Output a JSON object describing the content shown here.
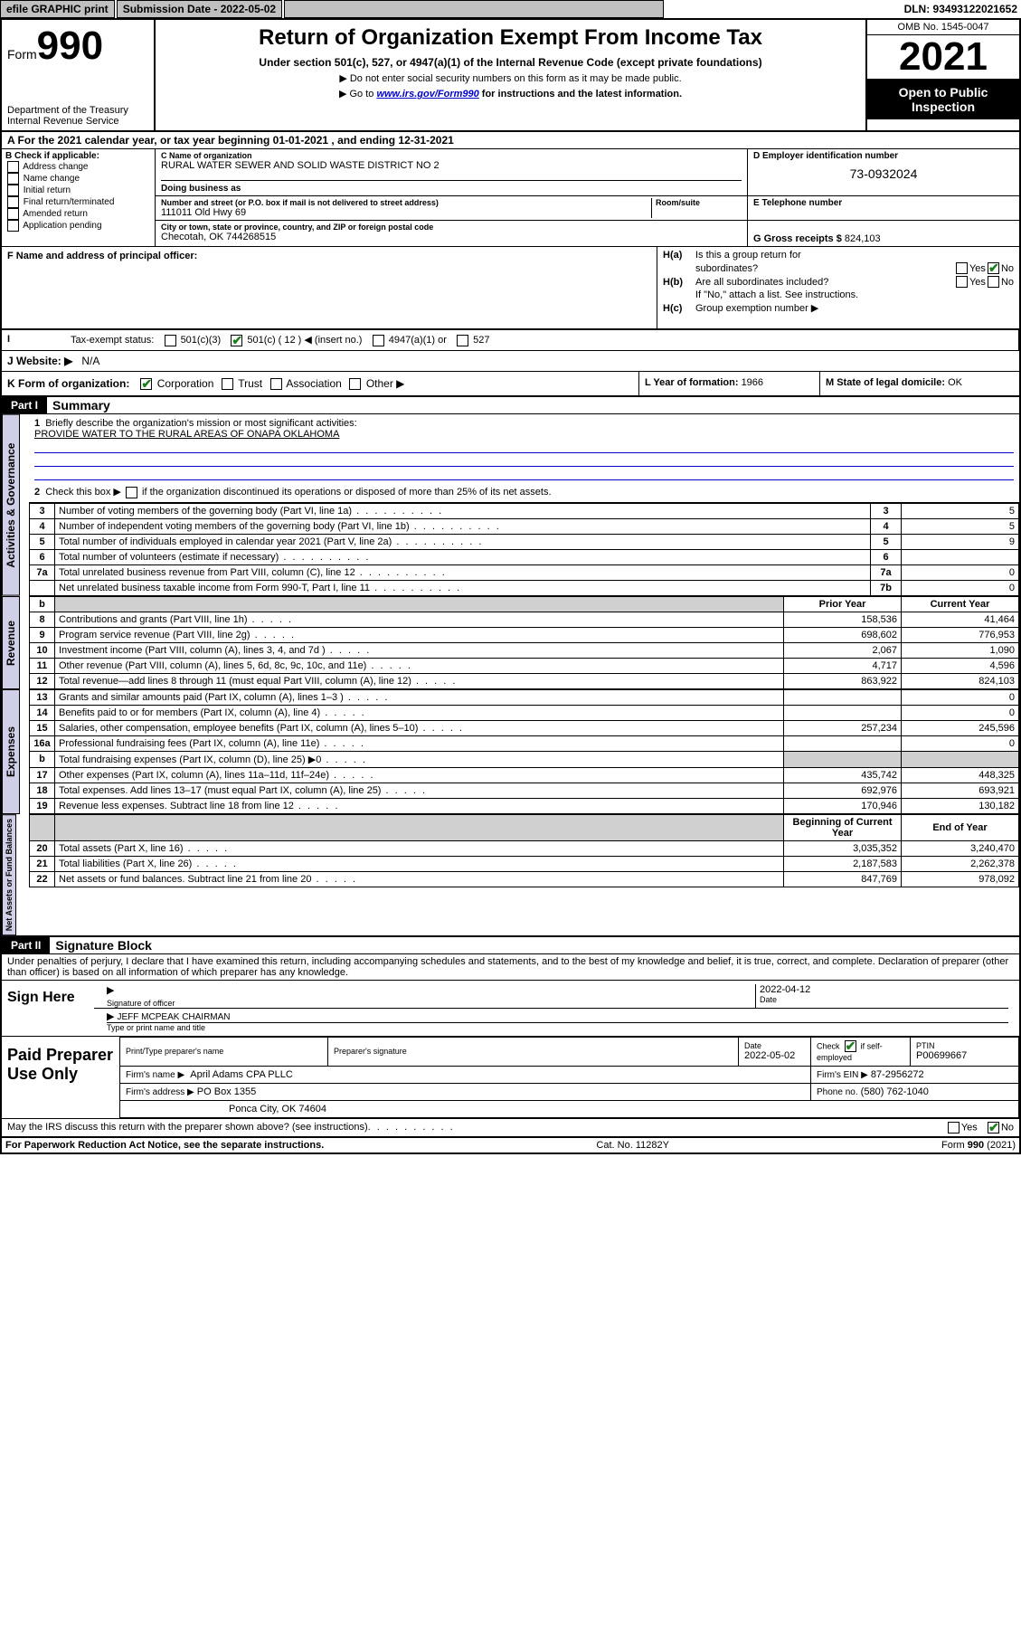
{
  "topbar": {
    "efile": "efile GRAPHIC print",
    "submission_label": "Submission Date - 2022-05-02",
    "dln": "DLN: 93493122021652"
  },
  "header": {
    "form_word": "Form",
    "form_num": "990",
    "dept": "Department of the Treasury",
    "irs": "Internal Revenue Service",
    "title": "Return of Organization Exempt From Income Tax",
    "subtitle": "Under section 501(c), 527, or 4947(a)(1) of the Internal Revenue Code (except private foundations)",
    "note1": "▶ Do not enter social security numbers on this form as it may be made public.",
    "note2_pre": "▶ Go to ",
    "note2_link": "www.irs.gov/Form990",
    "note2_post": " for instructions and the latest information.",
    "omb": "OMB No. 1545-0047",
    "year": "2021",
    "open1": "Open to Public",
    "open2": "Inspection"
  },
  "period": {
    "text_a": "A For the 2021 calendar year, or tax year beginning ",
    "begin": "01-01-2021",
    "text_b": " , and ending ",
    "end": "12-31-2021"
  },
  "boxB": {
    "title": "B Check if applicable:",
    "items": [
      "Address change",
      "Name change",
      "Initial return",
      "Final return/terminated",
      "Amended return",
      "Application pending"
    ]
  },
  "boxC": {
    "name_lbl": "C Name of organization",
    "name": "RURAL WATER SEWER AND SOLID WASTE DISTRICT NO 2",
    "dba_lbl": "Doing business as",
    "addr_lbl": "Number and street (or P.O. box if mail is not delivered to street address)",
    "room_lbl": "Room/suite",
    "addr": "111011 Old Hwy 69",
    "city_lbl": "City or town, state or province, country, and ZIP or foreign postal code",
    "city": "Checotah, OK  744268515"
  },
  "boxD": {
    "lbl": "D Employer identification number",
    "val": "73-0932024"
  },
  "boxE": {
    "lbl": "E Telephone number",
    "val": ""
  },
  "boxG": {
    "lbl": "G Gross receipts $",
    "val": "824,103"
  },
  "boxF": {
    "lbl": "F  Name and address of principal officer:"
  },
  "boxH": {
    "ha": "H(a)  Is this a group return for subordinates?",
    "hb": "H(b)  Are all subordinates included?",
    "hb_note": "If \"No,\" attach a list. See instructions.",
    "hc": "H(c)  Group exemption number ▶",
    "yes": "Yes",
    "no": "No"
  },
  "boxI": {
    "lbl": "Tax-exempt status:",
    "o1": "501(c)(3)",
    "o2a": "501(c) ( 12 ) ◀ (insert no.)",
    "o3": "4947(a)(1) or",
    "o4": "527"
  },
  "boxJ": {
    "lbl": "J   Website: ▶",
    "val": "N/A"
  },
  "boxK": {
    "lbl": "K Form of organization:",
    "o1": "Corporation",
    "o2": "Trust",
    "o3": "Association",
    "o4": "Other ▶"
  },
  "boxL": {
    "lbl": "L Year of formation: ",
    "val": "1966"
  },
  "boxM": {
    "lbl": "M State of legal domicile: ",
    "val": "OK"
  },
  "partI": {
    "tag": "Part I",
    "title": "Summary",
    "q1": "Briefly describe the organization's mission or most significant activities:",
    "mission": "PROVIDE WATER TO THE RURAL AREAS OF ONAPA OKLAHOMA",
    "q2": "Check this box ▶",
    "q2b": " if the organization discontinued its operations or disposed of more than 25% of its net assets."
  },
  "gov_rows": [
    {
      "n": "3",
      "d": "Number of voting members of the governing body (Part VI, line 1a)",
      "box": "3",
      "v": "5"
    },
    {
      "n": "4",
      "d": "Number of independent voting members of the governing body (Part VI, line 1b)",
      "box": "4",
      "v": "5"
    },
    {
      "n": "5",
      "d": "Total number of individuals employed in calendar year 2021 (Part V, line 2a)",
      "box": "5",
      "v": "9"
    },
    {
      "n": "6",
      "d": "Total number of volunteers (estimate if necessary)",
      "box": "6",
      "v": ""
    },
    {
      "n": "7a",
      "d": "Total unrelated business revenue from Part VIII, column (C), line 12",
      "box": "7a",
      "v": "0"
    },
    {
      "n": "",
      "d": "Net unrelated business taxable income from Form 990-T, Part I, line 11",
      "box": "7b",
      "v": "0"
    }
  ],
  "col_headers": {
    "b": "b",
    "prior": "Prior Year",
    "current": "Current Year"
  },
  "rev_rows": [
    {
      "n": "8",
      "d": "Contributions and grants (Part VIII, line 1h)",
      "p": "158,536",
      "c": "41,464"
    },
    {
      "n": "9",
      "d": "Program service revenue (Part VIII, line 2g)",
      "p": "698,602",
      "c": "776,953"
    },
    {
      "n": "10",
      "d": "Investment income (Part VIII, column (A), lines 3, 4, and 7d )",
      "p": "2,067",
      "c": "1,090"
    },
    {
      "n": "11",
      "d": "Other revenue (Part VIII, column (A), lines 5, 6d, 8c, 9c, 10c, and 11e)",
      "p": "4,717",
      "c": "4,596"
    },
    {
      "n": "12",
      "d": "Total revenue—add lines 8 through 11 (must equal Part VIII, column (A), line 12)",
      "p": "863,922",
      "c": "824,103"
    }
  ],
  "exp_rows": [
    {
      "n": "13",
      "d": "Grants and similar amounts paid (Part IX, column (A), lines 1–3 )",
      "p": "",
      "c": "0"
    },
    {
      "n": "14",
      "d": "Benefits paid to or for members (Part IX, column (A), line 4)",
      "p": "",
      "c": "0"
    },
    {
      "n": "15",
      "d": "Salaries, other compensation, employee benefits (Part IX, column (A), lines 5–10)",
      "p": "257,234",
      "c": "245,596"
    },
    {
      "n": "16a",
      "d": "Professional fundraising fees (Part IX, column (A), line 11e)",
      "p": "",
      "c": "0"
    },
    {
      "n": "b",
      "d": "Total fundraising expenses (Part IX, column (D), line 25) ▶0",
      "p": "shade",
      "c": "shade"
    },
    {
      "n": "17",
      "d": "Other expenses (Part IX, column (A), lines 11a–11d, 11f–24e)",
      "p": "435,742",
      "c": "448,325"
    },
    {
      "n": "18",
      "d": "Total expenses. Add lines 13–17 (must equal Part IX, column (A), line 25)",
      "p": "692,976",
      "c": "693,921"
    },
    {
      "n": "19",
      "d": "Revenue less expenses. Subtract line 18 from line 12",
      "p": "170,946",
      "c": "130,182"
    }
  ],
  "net_headers": {
    "b": "Beginning of Current Year",
    "e": "End of Year"
  },
  "net_rows": [
    {
      "n": "20",
      "d": "Total assets (Part X, line 16)",
      "p": "3,035,352",
      "c": "3,240,470"
    },
    {
      "n": "21",
      "d": "Total liabilities (Part X, line 26)",
      "p": "2,187,583",
      "c": "2,262,378"
    },
    {
      "n": "22",
      "d": "Net assets or fund balances. Subtract line 21 from line 20",
      "p": "847,769",
      "c": "978,092"
    }
  ],
  "vlabels": {
    "gov": "Activities & Governance",
    "rev": "Revenue",
    "exp": "Expenses",
    "net": "Net Assets or Fund Balances"
  },
  "partII": {
    "tag": "Part II",
    "title": "Signature Block",
    "decl": "Under penalties of perjury, I declare that I have examined this return, including accompanying schedules and statements, and to the best of my knowledge and belief, it is true, correct, and complete. Declaration of preparer (other than officer) is based on all information of which preparer has any knowledge."
  },
  "sign": {
    "here": "Sign Here",
    "sig_lbl": "Signature of officer",
    "date_lbl": "Date",
    "date": "2022-04-12",
    "name": "JEFF MCPEAK CHAIRMAN",
    "name_lbl": "Type or print name and title"
  },
  "paid": {
    "title": "Paid Preparer Use Only",
    "h1": "Print/Type preparer's name",
    "h2": "Preparer's signature",
    "h3": "Date",
    "h3v": "2022-05-02",
    "h4": "Check",
    "h4b": "if self-employed",
    "h5": "PTIN",
    "h5v": "P00699667",
    "firm_name_lbl": "Firm's name    ▶",
    "firm_name": "April Adams CPA PLLC",
    "firm_ein_lbl": "Firm's EIN ▶",
    "firm_ein": "87-2956272",
    "firm_addr_lbl": "Firm's address ▶",
    "firm_addr1": "PO Box 1355",
    "firm_addr2": "Ponca City, OK  74604",
    "phone_lbl": "Phone no.",
    "phone": "(580) 762-1040"
  },
  "footer": {
    "discuss": "May the IRS discuss this return with the preparer shown above? (see instructions)",
    "yes": "Yes",
    "no": "No",
    "pra": "For Paperwork Reduction Act Notice, see the separate instructions.",
    "cat": "Cat. No. 11282Y",
    "form": "Form 990 (2021)"
  }
}
